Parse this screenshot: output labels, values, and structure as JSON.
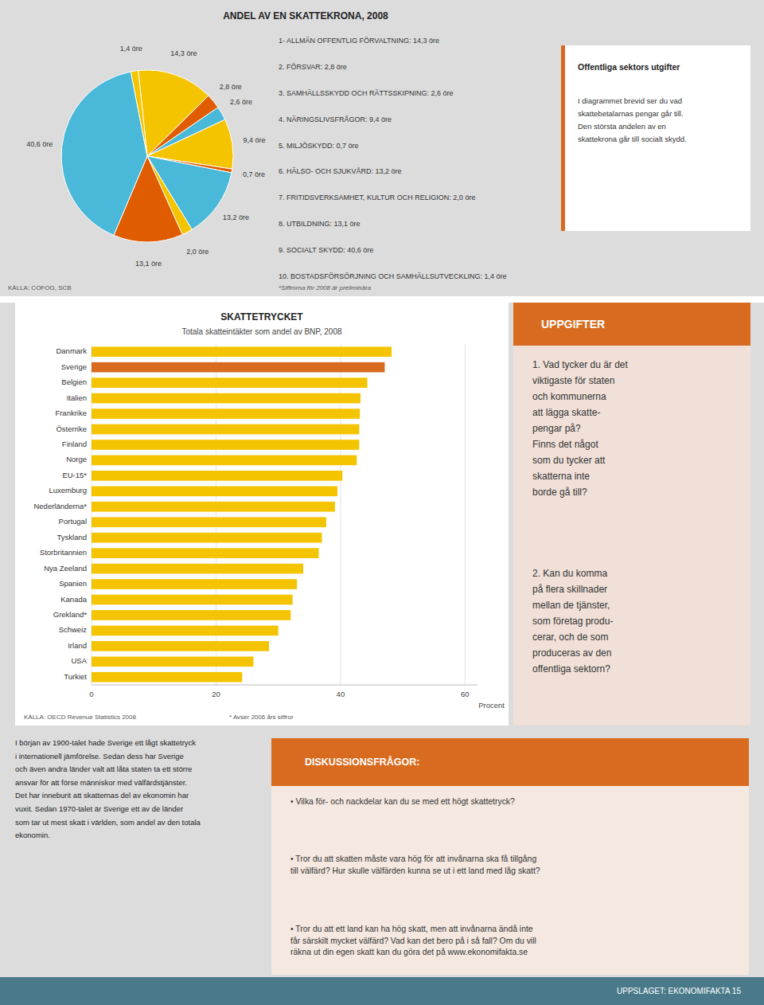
{
  "chart_data": [
    {
      "type": "pie",
      "title": "ANDEL AV EN SKATTEKRONA, 2008",
      "categories": [
        "1- ALLMÄN OFFENTLIG FÖRVALTNING: 14,3 öre",
        "2. FÖRSVAR: 2,8 öre",
        "3. SAMHÄLLSSKYDD OCH RÄTTSSKIPNING: 2,6 öre",
        "4. NÄRINGSLIVSFRÅGOR: 9,4 öre",
        "5. MILJÖSKYDD: 0,7 öre",
        "6. HÄLSO- OCH SJUKVÅRD: 13,2 öre",
        "7. FRITIDSVERKSAMHET, KULTUR OCH RELIGION: 2,0 öre",
        "8. UTBILDNING: 13,1 öre",
        "9. SOCIALT SKYDD: 40,6 öre",
        "10. BOSTADSFÖRSÖRJNING OCH SAMHÄLLSUTVECKLING: 1,4 öre"
      ],
      "values": [
        14.3,
        2.8,
        2.6,
        9.4,
        0.7,
        13.2,
        2.0,
        13.1,
        40.6,
        1.4
      ],
      "value_labels": [
        "14,3 öre",
        "2,8 öre",
        "2,6 öre",
        "9,4 öre",
        "0,7 öre",
        "13,2 öre",
        "2,0 öre",
        "13,1 öre",
        "40,6 öre",
        "1,4 öre"
      ],
      "data_labels": true,
      "colors": [
        "#f5c400",
        "#e05c00",
        "#4ab8d8",
        "#f5c400",
        "#e05c00",
        "#4ab8d8",
        "#f5c400",
        "#e05c00",
        "#4ab8d8",
        "#f5c400"
      ],
      "annotations": [
        "*Siffrorna för 2008 är preliminära",
        "KÄLLA: COFOG, SCB",
        "Offentliga sektors utgifter",
        "I diagrammet brevid ser du vad",
        "skattebetalarnas pengar går till.",
        "Den största andelen av en",
        "skattekrona går till socialt skydd."
      ]
    },
    {
      "type": "bar",
      "orientation": "horizontal",
      "title": "SKATTETRYCKET",
      "subtitle": "Totala skatteintäkter som andel av BNP, 2008",
      "xlabel": "Procent",
      "categories": [
        "Danmark",
        "Sverige",
        "Belgien",
        "Italien",
        "Frankrike",
        "Österrike",
        "Finland",
        "Norge",
        "EU-15*",
        "Luxemburg",
        "Nederländerna*",
        "Portugal",
        "Tyskland",
        "Storbritannien",
        "Nya Zeeland",
        "Spanien",
        "Kanada",
        "Grekland*",
        "Schweiz",
        "Irland",
        "USA",
        "Turkiet"
      ],
      "values": [
        48.2,
        47.1,
        44.3,
        43.2,
        43.1,
        43.0,
        43.0,
        42.6,
        40.3,
        39.5,
        39.1,
        37.7,
        37.0,
        36.5,
        34.0,
        33.0,
        32.3,
        32.0,
        30.0,
        28.5,
        26.0,
        24.2
      ],
      "colors": [
        "#f5c400",
        "#d96b20",
        "#f5c400",
        "#f5c400",
        "#f5c400",
        "#f5c400",
        "#f5c400",
        "#f5c400",
        "#f5c400",
        "#f5c400",
        "#f5c400",
        "#f5c400",
        "#f5c400",
        "#f5c400",
        "#f5c400",
        "#f5c400",
        "#f5c400",
        "#f5c400",
        "#f5c400",
        "#f5c400",
        "#f5c400",
        "#f5c400"
      ],
      "xlim": [
        0,
        62
      ],
      "xticks": [
        0,
        20,
        40,
        60
      ],
      "grid": true,
      "annotations": [
        "KÄLLA: OECD Revenue Statistics 2008",
        "* Avser 2006 års siffror",
        "UPPGIFTER",
        "1. Vad tycker du är det\nviktigaste för staten\noch kommunerna\natt lägga skatte-\npengar på?\nFinns det något\nsom du tycker att\nskatterna inte\nborde gå till?",
        "2. Kan du komma\npå flera skillnader\nmellan de tjänster,\nsom företag produ-\ncerar, och de som\nproduceras av den\noffentliga sektorn?",
        "I början av 1900-talet hade Sverige ett lågt skattetryck\ni internationell jämförelse. Sedan dess har Sverige\noch även andra länder valt att låta staten ta ett större\nansvar för att förse människor med välfärdstjänster.\nDet har inneburit att skatternas del av ekonomin har\nvuxit. Sedan 1970-talet är Sverige ett av de länder\nsom tar ut mest skatt i världen, som andel av den totala\nekonomin.",
        "DISKUSSIONSFRÅGOR:",
        "• Vilka för- och nackdelar kan du se med ett högt skattetryck?",
        "• Tror du att skatten måste vara hög för att invånarna ska få tillgång\ntill välfärd? Hur skulle välfärden kunna se ut i ett land med låg skatt?",
        "• Tror du att ett land kan ha hög skatt, men att invånarna ändå inte\nfår särskilt mycket välfärd? Vad kan det bero på i så fall? Om du vill\nräkna ut din egen skatt kan du göra det på www.ekonomifakta.se",
        "UPPSLAGET:  EKONOMIFAKTA 15"
      ]
    }
  ]
}
